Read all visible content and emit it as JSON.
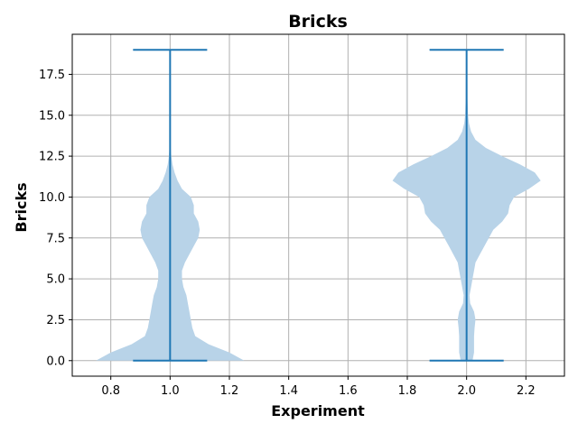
{
  "chart_data": {
    "type": "violin",
    "title": "Bricks",
    "xlabel": "Experiment",
    "ylabel": "Bricks",
    "xlim": [
      0.67,
      2.33
    ],
    "ylim": [
      -0.95,
      19.95
    ],
    "grid": true,
    "x_ticks": [
      0.8,
      1.0,
      1.2,
      1.4,
      1.6,
      1.8,
      2.0,
      2.2
    ],
    "x_tick_labels": [
      "0.8",
      "1.0",
      "1.2",
      "1.4",
      "1.6",
      "1.8",
      "2.0",
      "2.2"
    ],
    "y_ticks": [
      0,
      2.5,
      5,
      7.5,
      10,
      12.5,
      15,
      17.5
    ],
    "y_tick_labels": [
      "0.0",
      "2.5",
      "5.0",
      "7.5",
      "10.0",
      "12.5",
      "15.0",
      "17.5"
    ],
    "colors": {
      "fill": "#b8d3e8",
      "line": "#1f77b4",
      "grid": "#b0b0b0"
    },
    "violins": [
      {
        "position": 1.0,
        "min": 0,
        "max": 19,
        "cap_halfwidth": 0.125,
        "profile": [
          [
            0.0,
            0.25
          ],
          [
            0.5,
            0.2
          ],
          [
            1.0,
            0.13
          ],
          [
            1.5,
            0.085
          ],
          [
            2.0,
            0.075
          ],
          [
            2.5,
            0.07
          ],
          [
            3.0,
            0.065
          ],
          [
            3.5,
            0.06
          ],
          [
            4.0,
            0.055
          ],
          [
            4.5,
            0.045
          ],
          [
            5.0,
            0.04
          ],
          [
            5.5,
            0.04
          ],
          [
            6.0,
            0.05
          ],
          [
            6.5,
            0.065
          ],
          [
            7.0,
            0.08
          ],
          [
            7.5,
            0.095
          ],
          [
            8.0,
            0.1
          ],
          [
            8.5,
            0.095
          ],
          [
            9.0,
            0.08
          ],
          [
            9.5,
            0.08
          ],
          [
            10.0,
            0.07
          ],
          [
            10.5,
            0.04
          ],
          [
            11.0,
            0.025
          ],
          [
            11.5,
            0.015
          ],
          [
            12.0,
            0.008
          ],
          [
            12.5,
            0.004
          ],
          [
            13.0,
            0.002
          ],
          [
            13.5,
            0.001
          ],
          [
            14.0,
            0.0
          ]
        ]
      },
      {
        "position": 2.0,
        "min": 0,
        "max": 19,
        "cap_halfwidth": 0.125,
        "profile": [
          [
            0.0,
            0.02
          ],
          [
            0.5,
            0.025
          ],
          [
            1.0,
            0.025
          ],
          [
            1.5,
            0.025
          ],
          [
            2.0,
            0.027
          ],
          [
            2.5,
            0.03
          ],
          [
            3.0,
            0.025
          ],
          [
            3.5,
            0.012
          ],
          [
            4.0,
            0.01
          ],
          [
            4.5,
            0.015
          ],
          [
            5.0,
            0.02
          ],
          [
            5.5,
            0.025
          ],
          [
            6.0,
            0.03
          ],
          [
            6.5,
            0.045
          ],
          [
            7.0,
            0.06
          ],
          [
            7.5,
            0.075
          ],
          [
            8.0,
            0.09
          ],
          [
            8.5,
            0.12
          ],
          [
            9.0,
            0.14
          ],
          [
            9.5,
            0.145
          ],
          [
            10.0,
            0.16
          ],
          [
            10.5,
            0.21
          ],
          [
            11.0,
            0.25
          ],
          [
            11.5,
            0.23
          ],
          [
            12.0,
            0.18
          ],
          [
            12.5,
            0.12
          ],
          [
            13.0,
            0.065
          ],
          [
            13.5,
            0.03
          ],
          [
            14.0,
            0.015
          ],
          [
            14.5,
            0.008
          ],
          [
            15.0,
            0.005
          ],
          [
            16.0,
            0.003
          ],
          [
            17.0,
            0.0025
          ],
          [
            18.0,
            0.002
          ],
          [
            19.0,
            0.001
          ]
        ]
      }
    ]
  }
}
